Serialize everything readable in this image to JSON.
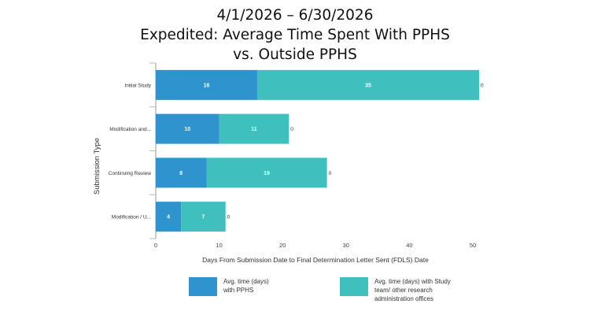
{
  "title_lines": [
    "4/1/2026 – 6/30/2026",
    "Expedited: Average Time Spent With PPHS",
    "vs. Outside PPHS"
  ],
  "chart_data": {
    "type": "bar",
    "orientation": "horizontal",
    "stacked": true,
    "categories": [
      "Initial Study",
      "Modification and...",
      "Continuing Review",
      "Modification / U..."
    ],
    "series": [
      {
        "name": "Avg. time (days) with PPHS",
        "color": "#2f93cd",
        "values": [
          16,
          10,
          8,
          4
        ]
      },
      {
        "name": "Avg. time (days) with Study team/ other research administration offices",
        "color": "#3fbfbe",
        "values": [
          35,
          11,
          19,
          7
        ]
      }
    ],
    "end_labels": [
      "0",
      "0",
      "0",
      "0"
    ],
    "xlabel": "Days From Submission Date to Final Determination Letter Sent (FDLS) Date",
    "ylabel": "Submission Type",
    "xlim": [
      0,
      50
    ],
    "xticks": [
      0,
      10,
      20,
      30,
      40,
      50
    ],
    "legend_position": "bottom",
    "legend": [
      {
        "lines": [
          "Avg. time (days)",
          "with PPHS"
        ],
        "color": "#2f93cd"
      },
      {
        "lines": [
          "Avg. time (days) with Study",
          "team/ other research",
          "administration offices"
        ],
        "color": "#3fbfbe"
      }
    ]
  }
}
